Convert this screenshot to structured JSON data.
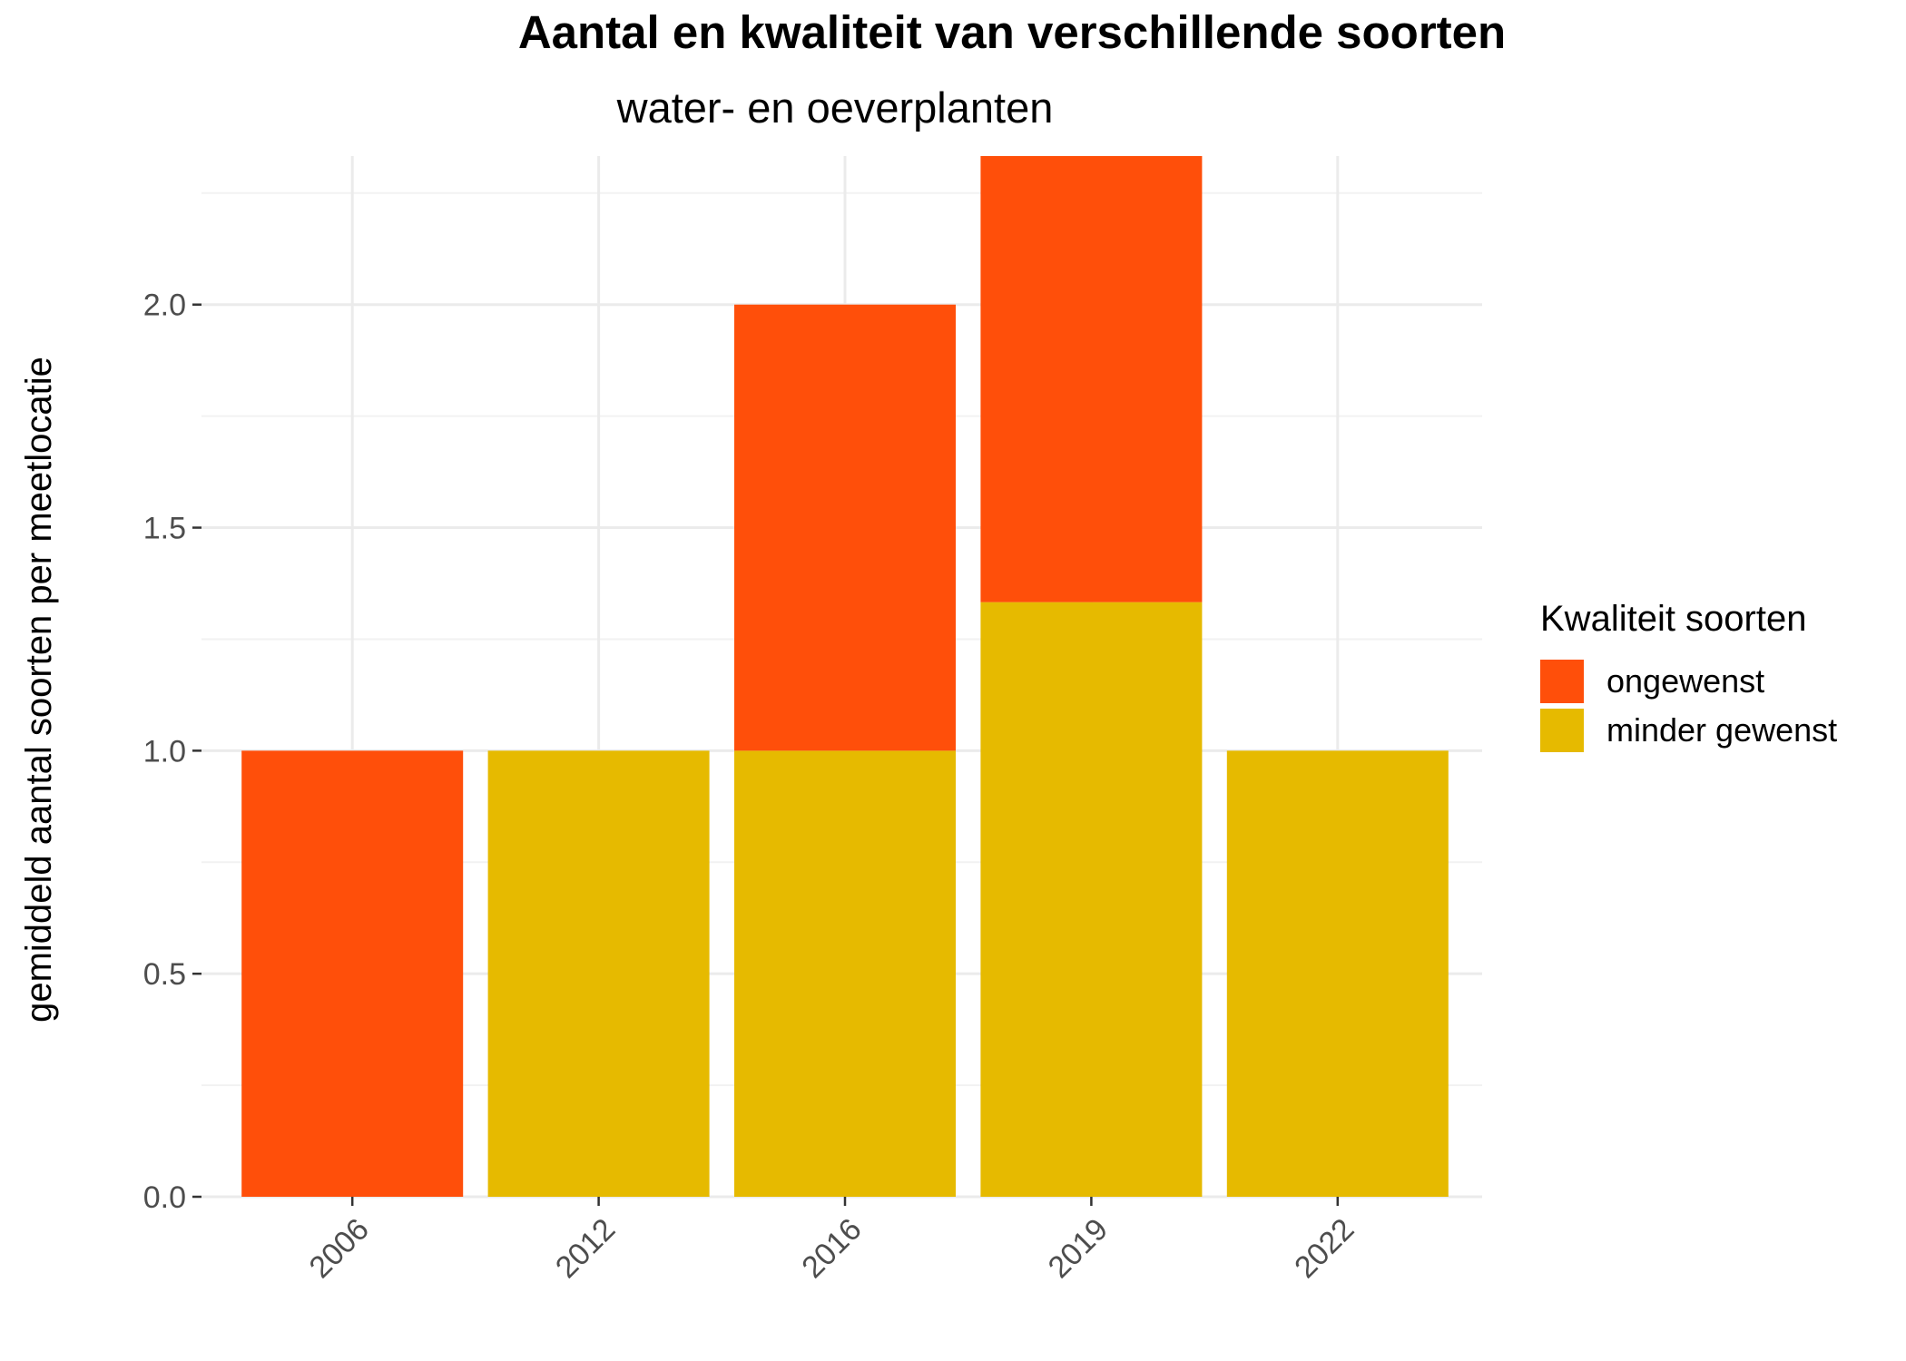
{
  "chart_data": {
    "type": "bar",
    "stacked": true,
    "title": "Aantal en kwaliteit van verschillende soorten",
    "subtitle": "water- en oeverplanten",
    "xlabel": "",
    "ylabel": "gemiddeld aantal soorten per meetlocatie",
    "categories": [
      "2006",
      "2012",
      "2016",
      "2019",
      "2022"
    ],
    "series": [
      {
        "name": "minder gewenst",
        "color": "#E6BA00",
        "values": [
          0,
          1,
          1,
          1.333,
          1
        ]
      },
      {
        "name": "ongewenst",
        "color": "#FF4F0A",
        "values": [
          1,
          0,
          1,
          1.0,
          0
        ]
      }
    ],
    "ylim": [
      0,
      2.333
    ],
    "yticks": [
      0.0,
      0.5,
      1.0,
      1.5,
      2.0
    ],
    "ytick_labels": [
      "0.0",
      "0.5",
      "1.0",
      "1.5",
      "2.0"
    ],
    "grid": true,
    "legend": {
      "title": "Kwaliteit soorten",
      "position": "right",
      "order": [
        "ongewenst",
        "minder gewenst"
      ]
    }
  }
}
